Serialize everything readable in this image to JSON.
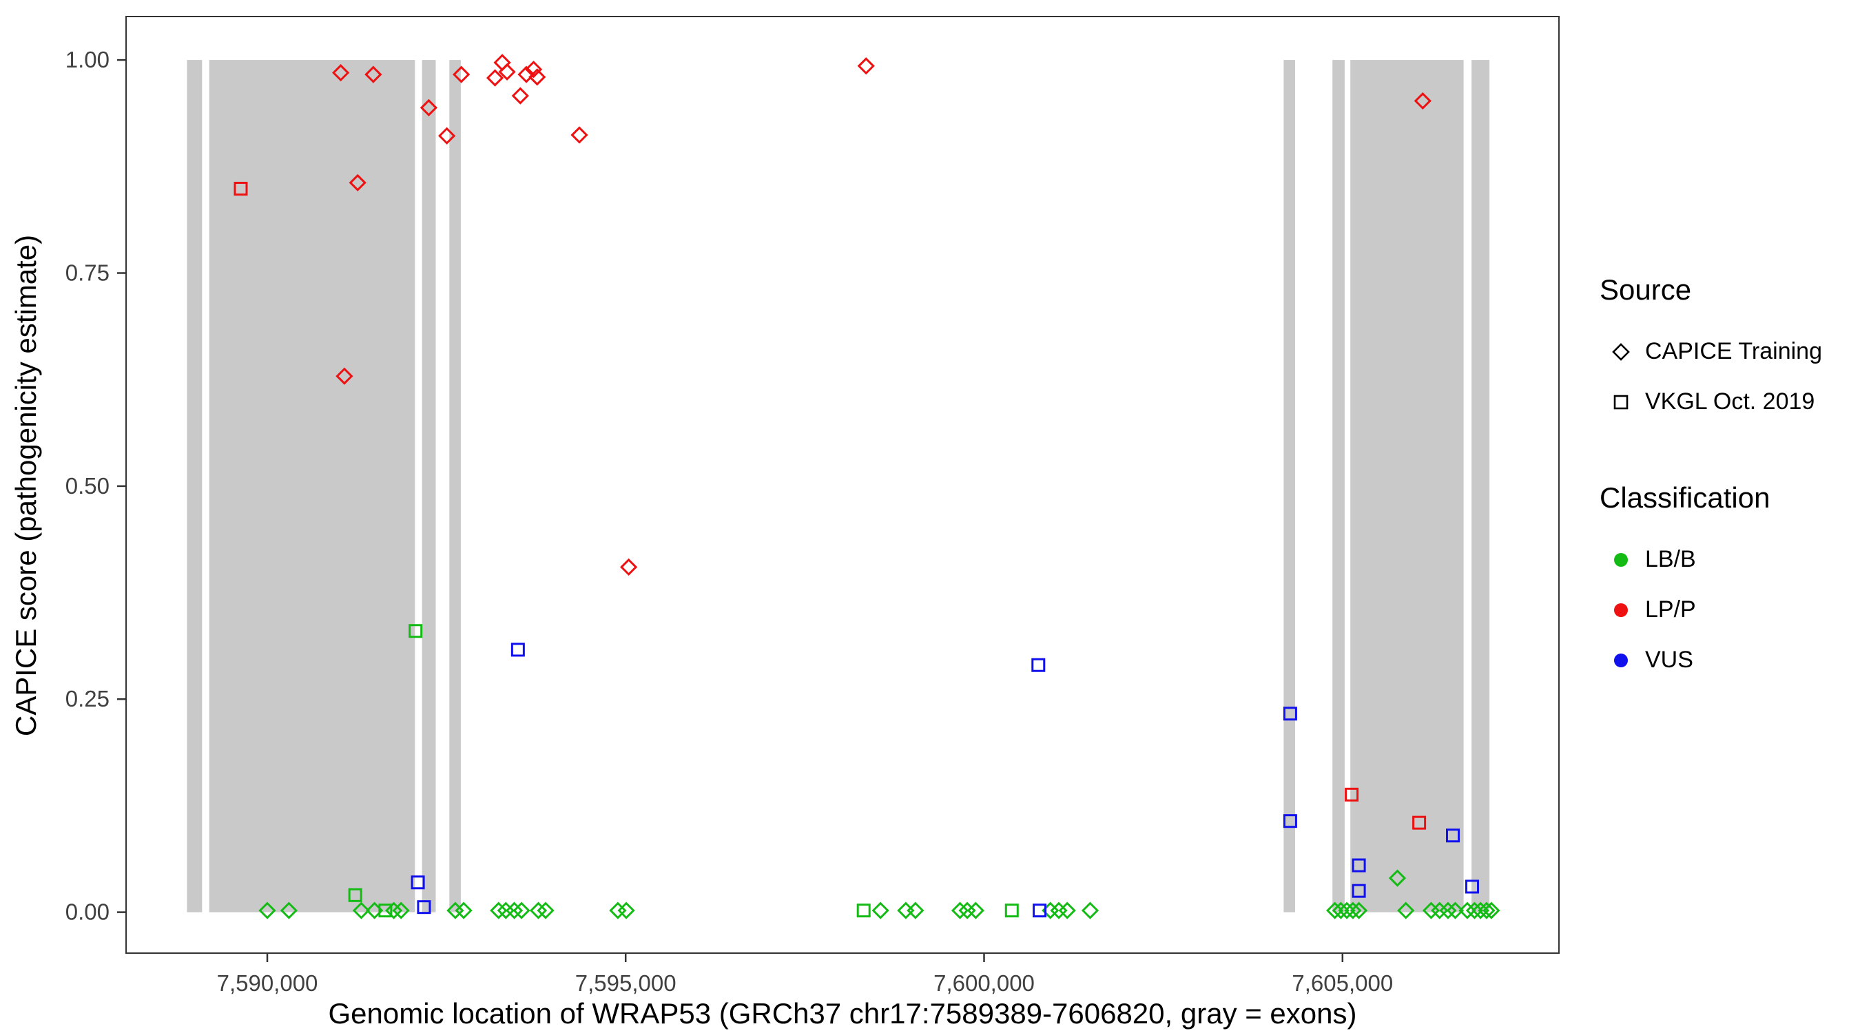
{
  "chart_data": {
    "type": "scatter",
    "xlabel": "Genomic location of WRAP53 (GRCh37 chr17:7589389-7606820, gray = exons)",
    "ylabel": "CAPICE score (pathogenicity estimate)",
    "xlim": [
      7588030,
      7608020
    ],
    "ylim": [
      -0.048,
      1.051
    ],
    "x_ticks": [
      7590000,
      7595000,
      7600000,
      7605000
    ],
    "x_tick_labels": [
      "7,590,000",
      "7,595,000",
      "7,600,000",
      "7,605,000"
    ],
    "y_ticks": [
      0,
      0.25,
      0.5,
      0.75,
      1
    ],
    "y_tick_labels": [
      "0.00",
      "0.25",
      "0.50",
      "0.75",
      "1.00"
    ],
    "grid": false,
    "legend_position": "right",
    "exon_color": "#c9c9c9",
    "exons": [
      [
        7588880,
        7589090
      ],
      [
        7589190,
        7592060
      ],
      [
        7592160,
        7592350
      ],
      [
        7592540,
        7592700
      ],
      [
        7604180,
        7604340
      ],
      [
        7604860,
        7605030
      ],
      [
        7605110,
        7606690
      ],
      [
        7606800,
        7607050
      ]
    ],
    "series": [
      {
        "source": "CAPICE Training",
        "classification": "LB/B",
        "shape": "diamond",
        "color": "#15bb15",
        "points": [
          [
            7590000,
            0.002
          ],
          [
            7590302,
            0.002
          ],
          [
            7591311,
            0.002
          ],
          [
            7591496,
            0.002
          ],
          [
            7591765,
            0.002
          ],
          [
            7591866,
            0.002
          ],
          [
            7592623,
            0.002
          ],
          [
            7592740,
            0.002
          ],
          [
            7593227,
            0.002
          ],
          [
            7593328,
            0.002
          ],
          [
            7593446,
            0.002
          ],
          [
            7593547,
            0.002
          ],
          [
            7593782,
            0.002
          ],
          [
            7593883,
            0.002
          ],
          [
            7594891,
            0.002
          ],
          [
            7595008,
            0.002
          ],
          [
            7598555,
            0.002
          ],
          [
            7598908,
            0.002
          ],
          [
            7599042,
            0.002
          ],
          [
            7599664,
            0.002
          ],
          [
            7599765,
            0.002
          ],
          [
            7599883,
            0.002
          ],
          [
            7600925,
            0.002
          ],
          [
            7601043,
            0.002
          ],
          [
            7601160,
            0.002
          ],
          [
            7601480,
            0.002
          ],
          [
            7604893,
            0.002
          ],
          [
            7604977,
            0.002
          ],
          [
            7605061,
            0.002
          ],
          [
            7605145,
            0.002
          ],
          [
            7605229,
            0.002
          ],
          [
            7605766,
            0.04
          ],
          [
            7605884,
            0.002
          ],
          [
            7606237,
            0.002
          ],
          [
            7606355,
            0.002
          ],
          [
            7606472,
            0.002
          ],
          [
            7606573,
            0.002
          ],
          [
            7606741,
            0.002
          ],
          [
            7606842,
            0.002
          ],
          [
            7606926,
            0.002
          ],
          [
            7607010,
            0.002
          ],
          [
            7607077,
            0.002
          ]
        ]
      },
      {
        "source": "VKGL Oct. 2019",
        "classification": "LB/B",
        "shape": "square",
        "color": "#15bb15",
        "points": [
          [
            7591227,
            0.02
          ],
          [
            7591647,
            0.002
          ],
          [
            7592068,
            0.33
          ],
          [
            7598320,
            0.002
          ],
          [
            7600387,
            0.002
          ]
        ]
      },
      {
        "source": "VKGL Oct. 2019",
        "classification": "VUS",
        "shape": "square",
        "color": "#1111ee",
        "points": [
          [
            7592101,
            0.035
          ],
          [
            7592186,
            0.006
          ],
          [
            7593497,
            0.308
          ],
          [
            7600757,
            0.29
          ],
          [
            7600774,
            0.002
          ],
          [
            7604271,
            0.233
          ],
          [
            7604271,
            0.107
          ],
          [
            7605229,
            0.055
          ],
          [
            7605229,
            0.025
          ],
          [
            7606540,
            0.09
          ],
          [
            7606809,
            0.03
          ]
        ]
      },
      {
        "source": "CAPICE Training",
        "classification": "LP/P",
        "shape": "diamond",
        "color": "#ee1111",
        "points": [
          [
            7591025,
            0.985
          ],
          [
            7591076,
            0.629
          ],
          [
            7591261,
            0.856
          ],
          [
            7591479,
            0.983
          ],
          [
            7592253,
            0.944
          ],
          [
            7592505,
            0.911
          ],
          [
            7592707,
            0.983
          ],
          [
            7593177,
            0.979
          ],
          [
            7593278,
            0.997
          ],
          [
            7593345,
            0.986
          ],
          [
            7593530,
            0.958
          ],
          [
            7593614,
            0.983
          ],
          [
            7593715,
            0.989
          ],
          [
            7593765,
            0.98
          ],
          [
            7594354,
            0.912
          ],
          [
            7595042,
            0.405
          ],
          [
            7598354,
            0.993
          ],
          [
            7606120,
            0.952
          ]
        ]
      },
      {
        "source": "VKGL Oct. 2019",
        "classification": "LP/P",
        "shape": "square",
        "color": "#ee1111",
        "points": [
          [
            7589630,
            0.849
          ],
          [
            7605128,
            0.138
          ],
          [
            7606070,
            0.105
          ]
        ]
      }
    ]
  },
  "legend": {
    "source_title": "Source",
    "source_items": [
      {
        "label": "CAPICE Training",
        "shape": "diamond"
      },
      {
        "label": "VKGL Oct. 2019",
        "shape": "square"
      }
    ],
    "classification_title": "Classification",
    "classification_items": [
      {
        "label": "LB/B",
        "color": "#15bb15"
      },
      {
        "label": "LP/P",
        "color": "#ee1111"
      },
      {
        "label": "VUS",
        "color": "#1111ee"
      }
    ]
  }
}
